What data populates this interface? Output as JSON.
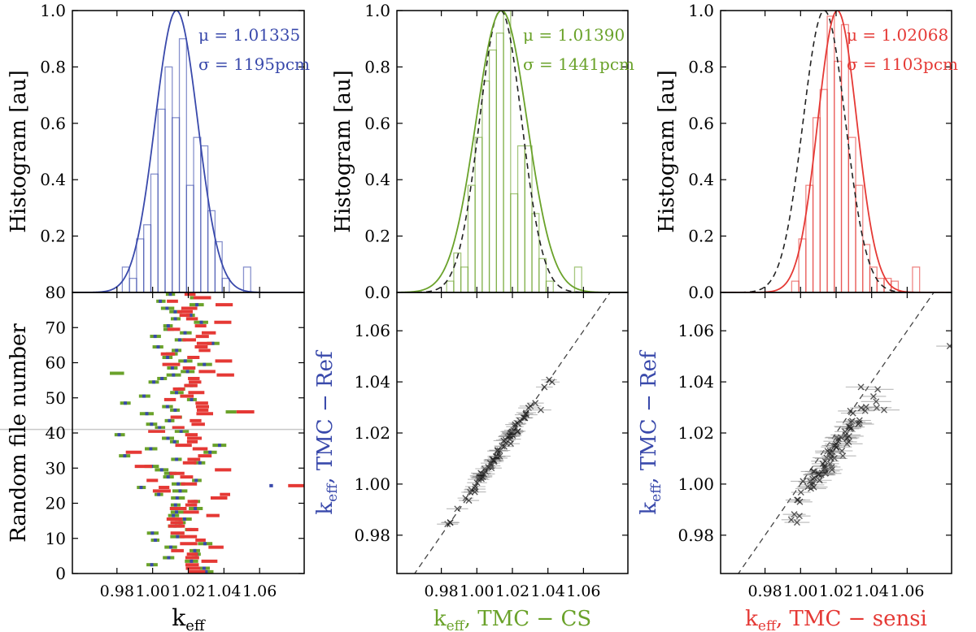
{
  "colors": {
    "blue": "#3949ab",
    "green": "#6aa22a",
    "red": "#e53935",
    "gray": "#444444",
    "hline": "#c8c8c8"
  },
  "chart_data": [
    {
      "type": "histogram",
      "panel": "top-left",
      "color": "blue",
      "ylabel": "Histogram [au]",
      "ylim": [
        0,
        1.0
      ],
      "xlim": [
        0.955,
        1.085
      ],
      "yticks": [
        "0.0",
        "0.2",
        "0.4",
        "0.6",
        "0.8",
        "1.0"
      ],
      "annotations": {
        "mu": "μ = 1.01335",
        "sigma": "σ = 1195pcm"
      },
      "gaussian": {
        "mu": 1.01335,
        "sigma": 0.01195,
        "peak": 1.0
      },
      "hist": {
        "edges": [
          0.983,
          0.987,
          0.991,
          0.995,
          0.999,
          1.003,
          1.007,
          1.011,
          1.015,
          1.019,
          1.023,
          1.027,
          1.031,
          1.035,
          1.039,
          1.043,
          1.047,
          1.051,
          1.055,
          1.059
        ],
        "values": [
          0.09,
          0.05,
          0.19,
          0.24,
          0.42,
          0.65,
          0.8,
          0.62,
          0.9,
          0.38,
          0.55,
          0.52,
          0.29,
          0.18,
          0.05,
          0.0,
          0.0,
          0.09,
          0.0
        ]
      }
    },
    {
      "type": "histogram",
      "panel": "top-middle",
      "color": "green",
      "ylabel": "Histogram [au]",
      "ylim": [
        0,
        1.0
      ],
      "xlim": [
        0.955,
        1.085
      ],
      "yticks": [
        "0.0",
        "0.2",
        "0.4",
        "0.6",
        "0.8",
        "1.0"
      ],
      "annotations": {
        "mu": "μ = 1.01390",
        "sigma": "σ = 1441pcm"
      },
      "gaussian": {
        "mu": 1.0139,
        "sigma": 0.01441,
        "peak": 1.0
      },
      "reference_gaussian": {
        "mu": 1.01335,
        "sigma": 0.01195,
        "peak": 1.0
      },
      "hist": {
        "edges": [
          0.983,
          0.987,
          0.991,
          0.995,
          0.999,
          1.003,
          1.007,
          1.011,
          1.015,
          1.019,
          1.023,
          1.027,
          1.031,
          1.035,
          1.039,
          1.043,
          1.047,
          1.051,
          1.055,
          1.059
        ],
        "values": [
          0.04,
          0.14,
          0.09,
          0.38,
          0.55,
          0.75,
          0.86,
          0.92,
          1.0,
          0.35,
          0.52,
          0.52,
          0.28,
          0.12,
          0.04,
          0.0,
          0.0,
          0.0,
          0.09
        ]
      }
    },
    {
      "type": "histogram",
      "panel": "top-right",
      "color": "red",
      "ylabel": "Histogram [au]",
      "ylim": [
        0,
        1.0
      ],
      "xlim": [
        0.955,
        1.085
      ],
      "yticks": [
        "0.0",
        "0.2",
        "0.4",
        "0.6",
        "0.8",
        "1.0"
      ],
      "annotations": {
        "mu": "μ = 1.02068",
        "sigma": "σ = 1103pcm"
      },
      "gaussian": {
        "mu": 1.02068,
        "sigma": 0.01103,
        "peak": 1.0
      },
      "reference_gaussian": {
        "mu": 1.01335,
        "sigma": 0.01195,
        "peak": 1.0
      },
      "hist": {
        "edges": [
          0.995,
          0.999,
          1.003,
          1.007,
          1.011,
          1.015,
          1.019,
          1.023,
          1.027,
          1.031,
          1.035,
          1.039,
          1.043,
          1.047,
          1.051,
          1.055,
          1.059,
          1.063,
          1.067
        ],
        "values": [
          0.04,
          0.19,
          0.38,
          0.62,
          0.72,
          0.98,
          0.82,
          0.95,
          0.55,
          0.38,
          0.17,
          0.09,
          0.05,
          0.05,
          0.04,
          0.0,
          0.0,
          0.09
        ]
      }
    },
    {
      "type": "scatter",
      "panel": "bottom-left",
      "ylabel": "Random file number",
      "xlabel": "k_eff",
      "xlim": [
        0.955,
        1.085
      ],
      "ylim": [
        0,
        80
      ],
      "xticks": [
        "0.98",
        "1.00",
        "1.02",
        "1.04",
        "1.06"
      ],
      "yticks": [
        "0",
        "10",
        "20",
        "30",
        "40",
        "50",
        "60",
        "70",
        "80"
      ],
      "reference_line_y": 41,
      "seed": 7,
      "n_files": 80,
      "blue_mu": 1.01335,
      "blue_sigma": 0.0115,
      "green_offset": 0.0006,
      "red_mu": 1.0207,
      "red_sigma": 0.011
    },
    {
      "type": "scatter",
      "panel": "bottom-middle",
      "xlabel": "k_eff, TMC − CS",
      "ylabel": "k_eff, TMC − Ref",
      "xlim": [
        0.955,
        1.085
      ],
      "ylim": [
        0.965,
        1.075
      ],
      "xticks": [
        "0.98",
        "1.00",
        "1.02",
        "1.04",
        "1.06"
      ],
      "yticks": [
        "0.98",
        "1.00",
        "1.02",
        "1.04",
        "1.06"
      ],
      "n_points": 80,
      "seed": 11,
      "note": "points lie along y = x"
    },
    {
      "type": "scatter",
      "panel": "bottom-right",
      "xlabel": "k_eff, TMC − sensi",
      "ylabel": "k_eff, TMC − Ref",
      "xlim": [
        0.955,
        1.085
      ],
      "ylim": [
        0.965,
        1.075
      ],
      "xticks": [
        "0.98",
        "1.00",
        "1.02",
        "1.04",
        "1.06"
      ],
      "yticks": [
        "0.98",
        "1.00",
        "1.02",
        "1.04",
        "1.06"
      ],
      "n_points": 80,
      "seed": 23,
      "note": "points shifted to the right of y = x"
    }
  ],
  "labels": {
    "keff_main": "k",
    "keff_sub": "eff",
    "tmc_ref": ",  TMC − Ref",
    "tmc_cs": ",  TMC − CS",
    "tmc_sensi": ",  TMC − sensi",
    "hist_ylabel": "Histogram [au]",
    "rand_ylabel": "Random file number"
  }
}
